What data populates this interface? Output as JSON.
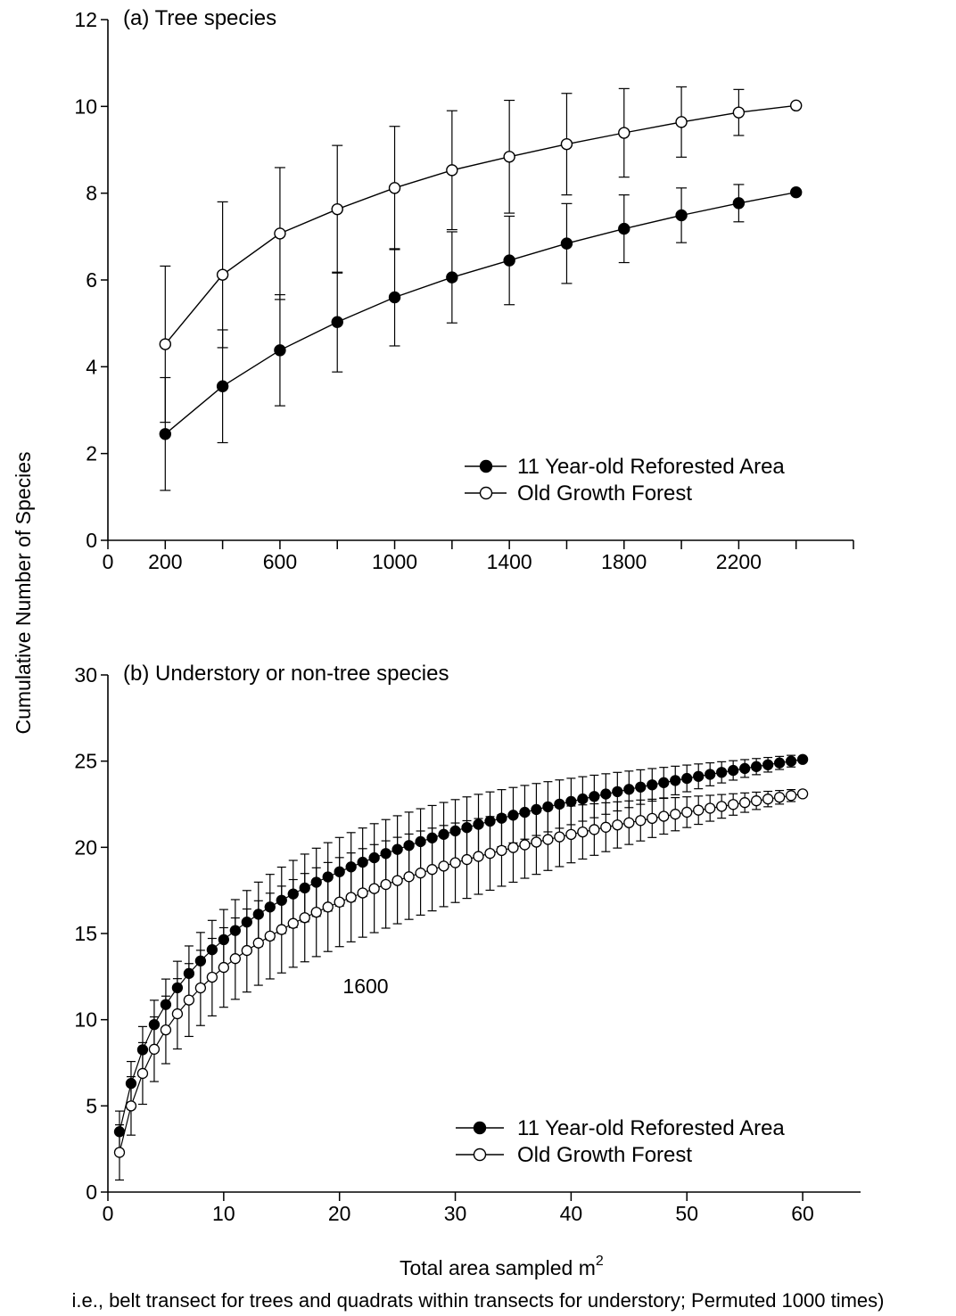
{
  "figure": {
    "ylabel": "Cumulative Number of Species",
    "xlabel_main": "Total area sampled m",
    "xlabel_sup": "2",
    "caption": "i.e., belt transect for trees and quadrats within transects for understory; Permuted 1000 times)"
  },
  "chart_data": [
    {
      "type": "line",
      "panel": "a",
      "title": "(a) Tree species",
      "xlabel": "",
      "ylabel": "Cumulative Number of Species",
      "ylim": [
        0,
        12
      ],
      "yticks": [
        0,
        2,
        4,
        6,
        8,
        10,
        12
      ],
      "x_ticks": [
        0,
        200,
        400,
        600,
        800,
        1000,
        1200,
        1400,
        1600,
        1800,
        2000,
        2200,
        2400,
        2600
      ],
      "x_tick_labels": [
        "0",
        "200",
        "600",
        "1000",
        "1400",
        "1800",
        "2200"
      ],
      "grid": false,
      "legend_position": "lower-right",
      "series": [
        {
          "name": "11 Year-old Reforested Area",
          "marker": "filled-circle",
          "x": [
            200,
            400,
            600,
            800,
            1000,
            1200,
            1400,
            1600,
            1800,
            2000,
            2200,
            2400
          ],
          "y": [
            2.45,
            3.55,
            4.38,
            5.03,
            5.6,
            6.06,
            6.45,
            6.84,
            7.18,
            7.49,
            7.77,
            8.02
          ],
          "err": [
            1.3,
            1.3,
            1.28,
            1.15,
            1.12,
            1.05,
            1.02,
            0.92,
            0.78,
            0.63,
            0.43,
            0
          ]
        },
        {
          "name": "Old Growth Forest",
          "marker": "open-circle",
          "x": [
            200,
            400,
            600,
            800,
            1000,
            1200,
            1400,
            1600,
            1800,
            2000,
            2200,
            2400
          ],
          "y": [
            4.52,
            6.12,
            7.07,
            7.63,
            8.12,
            8.53,
            8.84,
            9.13,
            9.39,
            9.64,
            9.86,
            10.02
          ],
          "err": [
            1.8,
            1.68,
            1.52,
            1.47,
            1.42,
            1.37,
            1.3,
            1.17,
            1.02,
            0.81,
            0.53,
            0
          ]
        }
      ]
    },
    {
      "type": "line",
      "panel": "b",
      "title": "(b) Understory or non-tree species",
      "xlabel": "Total area sampled m2",
      "ylabel": "Cumulative Number of Species",
      "ylim": [
        0,
        30
      ],
      "yticks": [
        0,
        5,
        10,
        15,
        20,
        25,
        30
      ],
      "xlim": [
        0,
        65
      ],
      "xticks": [
        0,
        10,
        20,
        30,
        40,
        50,
        60
      ],
      "grid": false,
      "legend_position": "lower-right",
      "annotation": "1600",
      "series": [
        {
          "name": "11 Year-old Reforested Area",
          "marker": "filled-circle",
          "x": [
            1,
            60
          ],
          "y_start": 3.5,
          "y_end": 25.1,
          "err_start": 1.2,
          "err_end": 0.3
        },
        {
          "name": "Old Growth Forest",
          "marker": "open-circle",
          "x": [
            1,
            60
          ],
          "y_start": 2.3,
          "y_end": 23.1,
          "err_start": 1.6,
          "err_end": 0.3
        }
      ]
    }
  ]
}
